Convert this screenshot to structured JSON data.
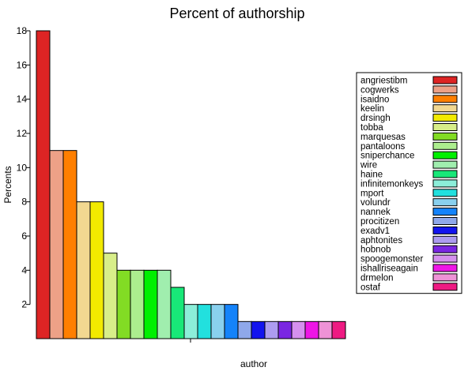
{
  "chart_data": {
    "type": "bar",
    "title": "Percent of authorship",
    "xlabel": "author",
    "ylabel": "Percents",
    "ylim": [
      0,
      18
    ],
    "yticks": [
      2,
      4,
      6,
      8,
      10,
      12,
      14,
      16,
      18
    ],
    "grid": false,
    "legend_position": "right",
    "categories": [
      "angriestibm",
      "cogwerks",
      "isaidno",
      "keelin",
      "drsingh",
      "tobba",
      "marquesas",
      "pantaloons",
      "sniperchance",
      "wire",
      "haine",
      "infinitemonkeys",
      "mport",
      "volundr",
      "nannek",
      "procitizen",
      "exadv1",
      "aphtonites",
      "hobnob",
      "spoogemonster",
      "ishallriseagain",
      "drmelon",
      "ostaf"
    ],
    "values": [
      18,
      11,
      11,
      8,
      8,
      5,
      4,
      4,
      4,
      4,
      3,
      2,
      2,
      2,
      2,
      1,
      1,
      1,
      1,
      1,
      1,
      1,
      1
    ],
    "colors": [
      "#dd2424",
      "#eda187",
      "#ff7f00",
      "#f2d891",
      "#f2ea00",
      "#d8ee89",
      "#82dc24",
      "#acee8e",
      "#00f000",
      "#a0eeae",
      "#18e878",
      "#8ceed9",
      "#22e0de",
      "#89d0ee",
      "#1483fa",
      "#8fa8ea",
      "#1314ee",
      "#ad9cf0",
      "#7a26e2",
      "#d590ee",
      "#ee16e6",
      "#ee92d6",
      "#ee1a82"
    ]
  }
}
